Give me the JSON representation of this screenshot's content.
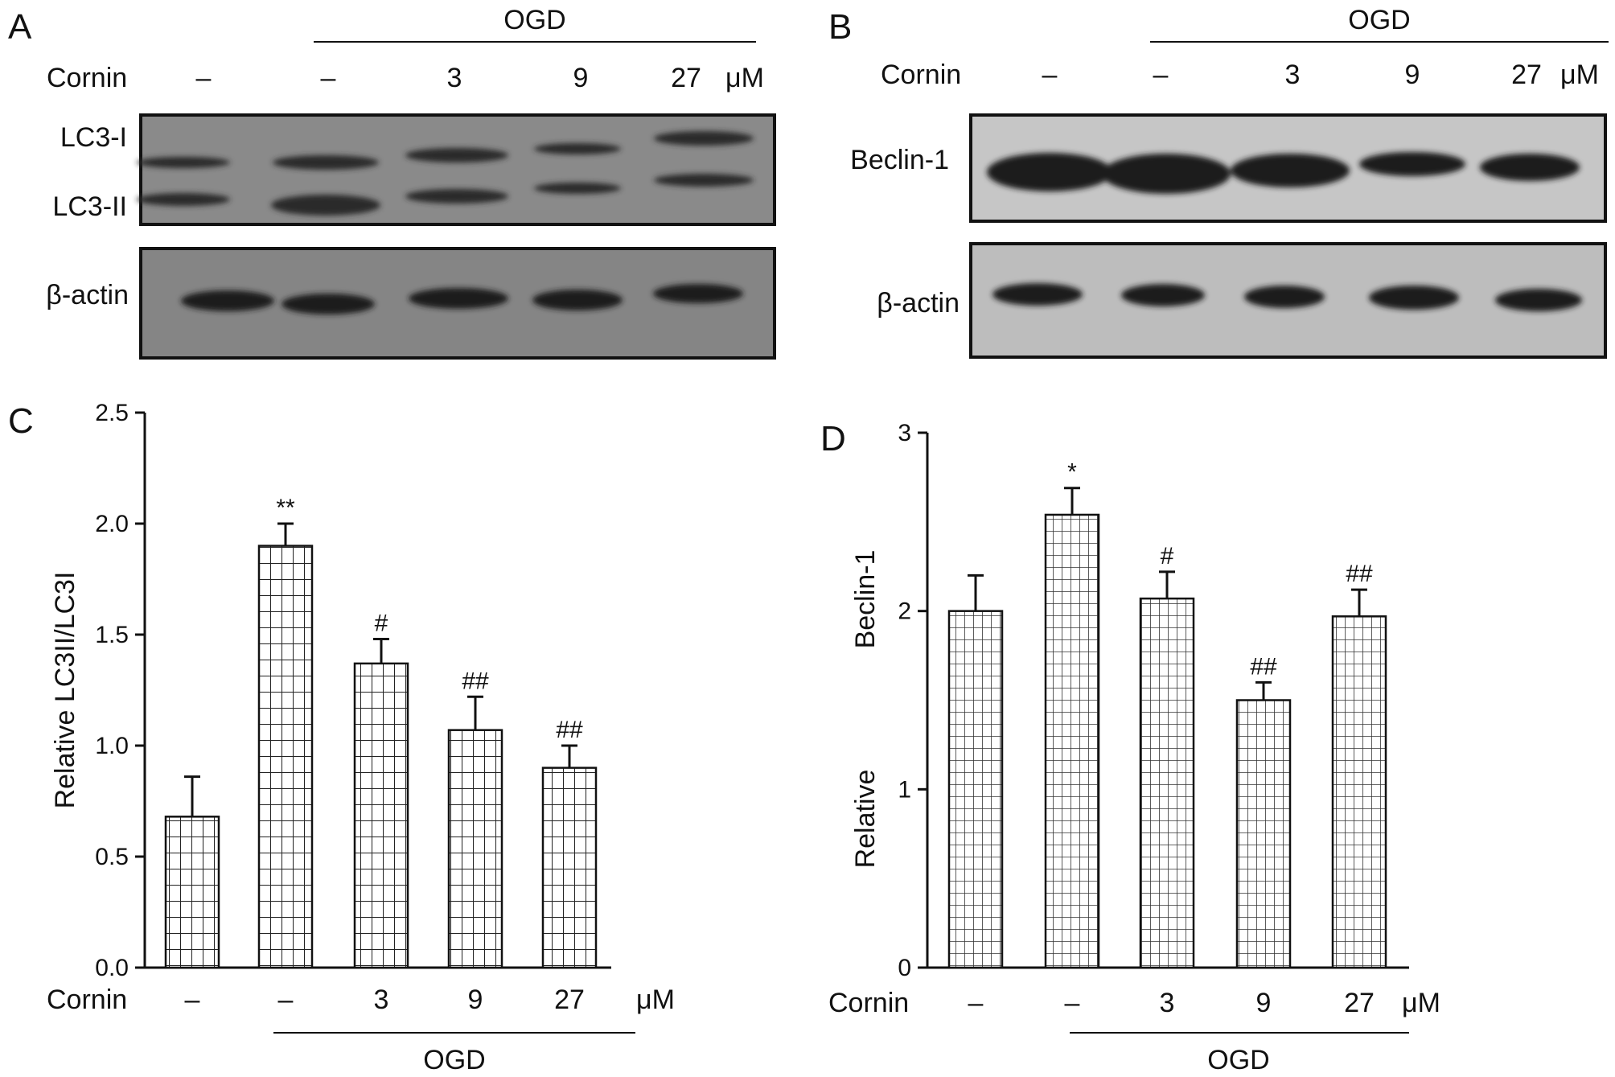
{
  "panels": {
    "A": {
      "letter": "A",
      "group_label": "OGD",
      "row_label": "Cornin",
      "lanes": [
        "–",
        "–",
        "3",
        "9",
        "27"
      ],
      "unit": "μM",
      "blot_labels": [
        "LC3-I",
        "LC3-II",
        "β-actin"
      ]
    },
    "B": {
      "letter": "B",
      "group_label": "OGD",
      "row_label": "Cornin",
      "lanes": [
        "–",
        "–",
        "3",
        "9",
        "27"
      ],
      "unit": "μM",
      "blot_labels": [
        "Beclin-1",
        "β-actin"
      ]
    },
    "C": {
      "letter": "C",
      "row_label": "Cornin",
      "group_label": "OGD",
      "unit": "μM"
    },
    "D": {
      "letter": "D",
      "row_label": "Cornin",
      "group_label": "OGD",
      "unit": "μM"
    }
  },
  "chart_data": [
    {
      "type": "bar",
      "panel": "C",
      "categories": [
        "–",
        "–",
        "3",
        "9",
        "27"
      ],
      "values": [
        0.68,
        1.9,
        1.37,
        1.07,
        0.9
      ],
      "errors": [
        0.18,
        0.1,
        0.11,
        0.15,
        0.1
      ],
      "annotations": [
        "",
        "**",
        "#",
        "##",
        "##"
      ],
      "ylabel": "Relative LC3II/LC3I",
      "xlabel": "",
      "ylim": [
        0,
        2.5
      ],
      "yticks": [
        "0.0",
        "0.5",
        "1.0",
        "1.5",
        "2.0",
        "2.5"
      ],
      "grid": false
    },
    {
      "type": "bar",
      "panel": "D",
      "categories": [
        "–",
        "–",
        "3",
        "9",
        "27"
      ],
      "values": [
        2.0,
        2.54,
        2.07,
        1.5,
        1.97
      ],
      "errors": [
        0.2,
        0.15,
        0.15,
        0.1,
        0.15
      ],
      "annotations": [
        "",
        "*",
        "#",
        "##",
        "##"
      ],
      "ylabel": "Relative Beclin-1",
      "ylabel_parts": [
        "Relative",
        "Beclin-1"
      ],
      "xlabel": "",
      "ylim": [
        0,
        3
      ],
      "yticks": [
        "0",
        "1",
        "2",
        "3"
      ],
      "grid": false
    }
  ]
}
